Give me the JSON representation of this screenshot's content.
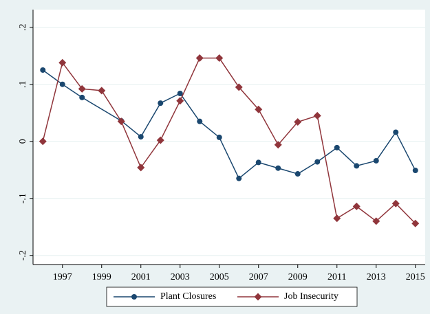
{
  "chart_data": {
    "type": "line",
    "xlim": [
      1995.5,
      2015.5
    ],
    "xticks": [
      1997,
      1999,
      2001,
      2003,
      2005,
      2007,
      2009,
      2011,
      2013,
      2015
    ],
    "ylim": [
      -0.216,
      0.231
    ],
    "yticks": [
      {
        "value": -0.2,
        "label": "-.2"
      },
      {
        "value": -0.1,
        "label": "-.1"
      },
      0,
      {
        "value": 0.1,
        "label": ".1"
      },
      {
        "value": 0.2,
        "label": ".2"
      }
    ],
    "grid": true,
    "legend": "bottom",
    "series": [
      {
        "name": "Plant Closures",
        "color": "#1a476f",
        "marker": "circle",
        "x": [
          1996,
          1997,
          1998,
          2000,
          2001,
          2002,
          2003,
          2004,
          2005,
          2006,
          2007,
          2008,
          2009,
          2010,
          2011,
          2012,
          2013,
          2014,
          2015
        ],
        "values": [
          0.125,
          0.1,
          0.077,
          0.036,
          0.008,
          0.067,
          0.084,
          0.035,
          0.007,
          -0.065,
          -0.037,
          -0.047,
          -0.057,
          -0.036,
          -0.011,
          -0.043,
          -0.034,
          0.016,
          -0.051
        ]
      },
      {
        "name": "Job Insecurity",
        "color": "#90353b",
        "marker": "diamond",
        "x": [
          1996,
          1997,
          1998,
          1999,
          2000,
          2001,
          2002,
          2003,
          2004,
          2005,
          2006,
          2007,
          2008,
          2009,
          2010,
          2011,
          2012,
          2013,
          2014,
          2015
        ],
        "values": [
          0.0,
          0.138,
          0.092,
          0.089,
          0.035,
          -0.046,
          0.002,
          0.071,
          0.146,
          0.146,
          0.095,
          0.056,
          -0.006,
          0.034,
          0.045,
          -0.135,
          -0.114,
          -0.14,
          -0.109,
          -0.144
        ]
      }
    ]
  }
}
